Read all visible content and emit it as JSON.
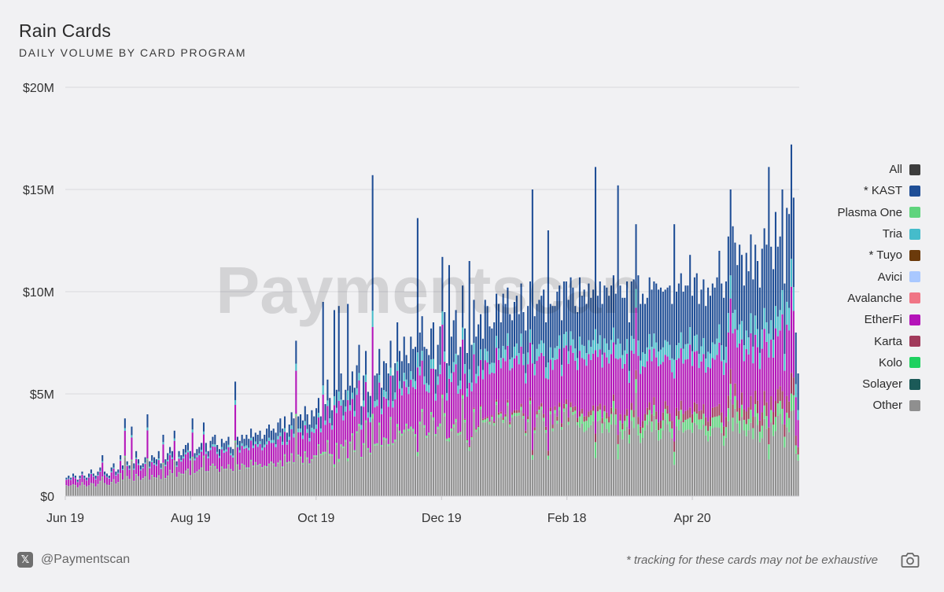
{
  "header": {
    "title": "Rain Cards",
    "subtitle": "DAILY VOLUME BY CARD PROGRAM"
  },
  "watermark": "Paymentscan",
  "footer": {
    "x_icon": "x-logo-icon",
    "handle": "@Paymentscan",
    "note": "* tracking for these cards may not be exhaustive",
    "camera_icon": "camera-icon"
  },
  "chart_data": {
    "type": "bar",
    "stacked": true,
    "title": "Rain Cards",
    "subtitle": "DAILY VOLUME BY CARD PROGRAM",
    "ylim": [
      0,
      20000000
    ],
    "y_ticks": [
      {
        "value": 0,
        "label": "$0"
      },
      {
        "value": 5000000,
        "label": "$5M"
      },
      {
        "value": 10000000,
        "label": "$10M"
      },
      {
        "value": 15000000,
        "label": "$15M"
      },
      {
        "value": 20000000,
        "label": "$20M"
      }
    ],
    "x_range": [
      "2024-06-19",
      "2025-06-11"
    ],
    "x_ticks": [
      {
        "date": "2024-06-19",
        "label": "Jun 19"
      },
      {
        "date": "2024-08-19",
        "label": "Aug 19"
      },
      {
        "date": "2024-10-19",
        "label": "Oct 19"
      },
      {
        "date": "2024-12-19",
        "label": "Dec 19"
      },
      {
        "date": "2025-02-18",
        "label": "Feb 18"
      },
      {
        "date": "2025-04-20",
        "label": "Apr 20"
      }
    ],
    "grid": "horizontal",
    "legend_position": "right",
    "series": [
      {
        "name": "All",
        "color": "#3d3d3d"
      },
      {
        "name": "* KAST",
        "color": "#1f4e96"
      },
      {
        "name": "Plasma One",
        "color": "#5fd47d"
      },
      {
        "name": "Tria",
        "color": "#45bccb"
      },
      {
        "name": "* Tuyo",
        "color": "#6b3a0b"
      },
      {
        "name": "Avici",
        "color": "#a9c8ff"
      },
      {
        "name": "Avalanche",
        "color": "#f07585"
      },
      {
        "name": "EtherFi",
        "color": "#b414b9"
      },
      {
        "name": "Karta",
        "color": "#a13a5b"
      },
      {
        "name": "Kolo",
        "color": "#1fd160"
      },
      {
        "name": "Solayer",
        "color": "#1b5a58"
      },
      {
        "name": "Other",
        "color": "#8f8f8f"
      }
    ],
    "stack_series": [
      "Other",
      "Plasma One",
      "Karta",
      "EtherFi",
      "Tria",
      "* KAST"
    ],
    "daily_totals_M": [
      0.9,
      1.0,
      0.9,
      1.1,
      1.0,
      0.8,
      1.0,
      1.2,
      1.0,
      0.9,
      1.1,
      1.3,
      1.1,
      1.0,
      1.2,
      1.4,
      2.0,
      1.2,
      1.1,
      1.0,
      1.4,
      1.6,
      1.2,
      1.3,
      2.0,
      1.5,
      3.8,
      1.7,
      1.5,
      3.4,
      1.6,
      2.2,
      1.8,
      1.5,
      1.6,
      1.9,
      4.0,
      1.7,
      2.0,
      1.9,
      1.8,
      2.2,
      1.6,
      3.0,
      1.8,
      2.1,
      2.4,
      2.2,
      3.2,
      1.7,
      2.2,
      2.0,
      2.3,
      2.5,
      2.6,
      2.2,
      3.8,
      2.1,
      2.3,
      2.4,
      2.6,
      3.6,
      2.6,
      2.2,
      2.7,
      2.9,
      3.0,
      2.5,
      2.3,
      2.8,
      2.6,
      2.7,
      2.9,
      2.4,
      2.3,
      5.6,
      2.9,
      2.7,
      3.0,
      2.8,
      3.0,
      2.8,
      3.3,
      2.9,
      3.1,
      3.0,
      3.2,
      2.8,
      3.0,
      3.3,
      3.5,
      3.2,
      3.3,
      3.1,
      3.6,
      3.8,
      3.3,
      3.9,
      3.1,
      3.5,
      4.1,
      3.8,
      7.6,
      3.9,
      4.0,
      3.7,
      4.4,
      4.0,
      3.5,
      4.2,
      3.9,
      4.3,
      4.8,
      3.9,
      9.5,
      4.5,
      5.7,
      4.8,
      4.2,
      9.1,
      5.2,
      9.3,
      6.0,
      4.7,
      5.2,
      9.4,
      5.4,
      6.1,
      5.3,
      6.4,
      7.4,
      4.4,
      5.9,
      7.1,
      5.1,
      4.9,
      15.7,
      5.9,
      6.0,
      7.2,
      5.3,
      6.6,
      6.5,
      6.0,
      7.6,
      5.9,
      6.5,
      8.5,
      7.1,
      6.6,
      7.8,
      6.9,
      6.5,
      7.8,
      7.2,
      7.3,
      13.6,
      8.0,
      8.8,
      7.3,
      7.2,
      6.9,
      8.2,
      8.5,
      6.2,
      7.4,
      8.3,
      11.7,
      9.0,
      6.5,
      11.3,
      7.8,
      8.6,
      9.1,
      6.9,
      7.3,
      10.3,
      8.2,
      7.0,
      11.5,
      7.4,
      9.6,
      7.8,
      8.4,
      8.9,
      7.7,
      9.6,
      9.3,
      8.3,
      8.2,
      8.5,
      9.9,
      9.4,
      8.5,
      9.9,
      9.4,
      10.2,
      8.9,
      8.6,
      9.5,
      9.8,
      8.9,
      10.4,
      9.0,
      8.1,
      9.3,
      10.5,
      15.0,
      8.8,
      9.4,
      9.6,
      9.8,
      10.1,
      8.5,
      13.0,
      9.4,
      9.3,
      9.3,
      10.0,
      10.3,
      8.6,
      10.5,
      10.5,
      9.6,
      10.7,
      10.2,
      9.3,
      9.0,
      10.7,
      9.8,
      10.1,
      9.4,
      10.4,
      9.7,
      10.1,
      16.1,
      9.8,
      10.5,
      9.4,
      10.3,
      10.2,
      9.8,
      10.3,
      10.8,
      9.9,
      15.2,
      10.3,
      9.7,
      9.7,
      10.5,
      8.5,
      10.5,
      10.6,
      13.3,
      10.8,
      9.4,
      9.9,
      9.4,
      9.7,
      10.7,
      10.1,
      10.5,
      10.4,
      10.1,
      10.2,
      10.0,
      10.1,
      10.2,
      10.3,
      9.4,
      13.3,
      10.0,
      10.4,
      10.9,
      10.0,
      10.3,
      10.3,
      11.8,
      9.8,
      10.7,
      10.9,
      9.4,
      10.1,
      10.6,
      9.3,
      10.2,
      9.8,
      10.4,
      10.2,
      10.7,
      12.0,
      10.4,
      9.7,
      10.5,
      12.7,
      15.0,
      13.2,
      12.4,
      11.3,
      12.3,
      11.8,
      10.3,
      11.9,
      11.0,
      12.8,
      10.6,
      12.3,
      11.5,
      10.2,
      12.1,
      13.1,
      12.3,
      16.1,
      12.2,
      11.1,
      13.9,
      12.2,
      12.7,
      15.0,
      10.4,
      14.1,
      13.8,
      17.2,
      14.6,
      8.0,
      6.0
    ]
  }
}
